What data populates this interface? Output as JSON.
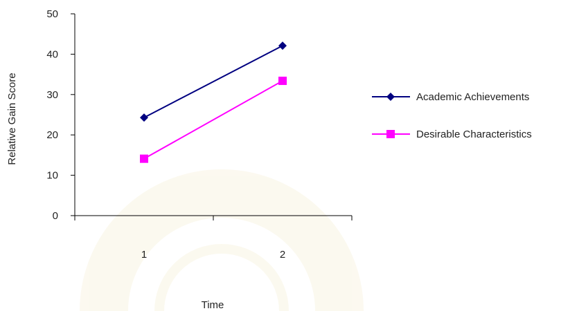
{
  "chart_data": {
    "type": "line",
    "title": "",
    "xlabel": "Time",
    "ylabel": "Relative Gain Score",
    "categories": [
      "1",
      "2"
    ],
    "ylim": [
      0,
      50
    ],
    "yticks": [
      0,
      10,
      20,
      30,
      40,
      50
    ],
    "grid": false,
    "legend_position": "right",
    "series": [
      {
        "name": "Academic Achievements",
        "values": [
          24.3,
          42.1
        ],
        "color": "#000080",
        "marker": "diamond"
      },
      {
        "name": "Desirable Characteristics",
        "values": [
          14.1,
          33.4
        ],
        "color": "#ff00ff",
        "marker": "square"
      }
    ]
  }
}
